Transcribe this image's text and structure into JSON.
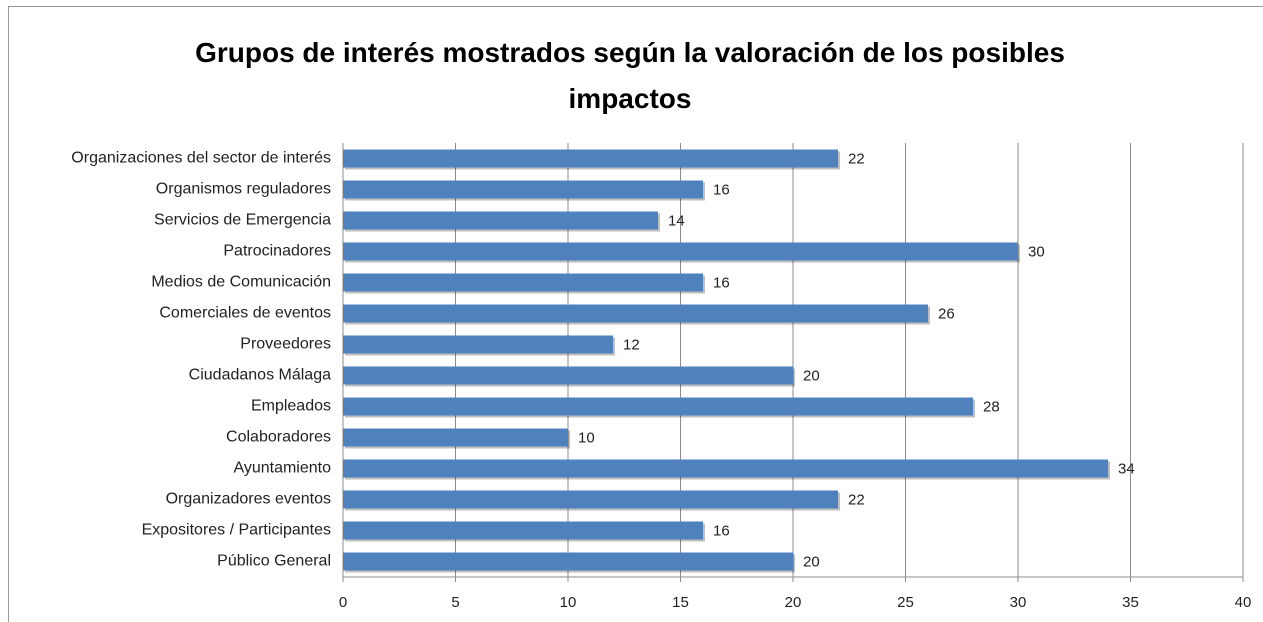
{
  "chart_data": {
    "type": "barh",
    "title": "Grupos de interés mostrados según la valoración de los posibles impactos",
    "categories": [
      "Organizaciones del sector de interés",
      "Organismos reguladores",
      "Servicios de Emergencia",
      "Patrocinadores",
      "Medios de Comunicación",
      "Comerciales de eventos",
      "Proveedores",
      "Ciudadanos Málaga",
      "Empleados",
      "Colaboradores",
      "Ayuntamiento",
      "Organizadores eventos",
      "Expositores / Participantes",
      "Público General"
    ],
    "values": [
      22,
      16,
      14,
      30,
      16,
      26,
      12,
      20,
      28,
      10,
      34,
      22,
      16,
      20
    ],
    "color": "#4f81bd",
    "xlim": [
      0,
      40
    ],
    "xticks": [
      0,
      5,
      10,
      15,
      20,
      25,
      30,
      35,
      40
    ],
    "grid": true
  }
}
